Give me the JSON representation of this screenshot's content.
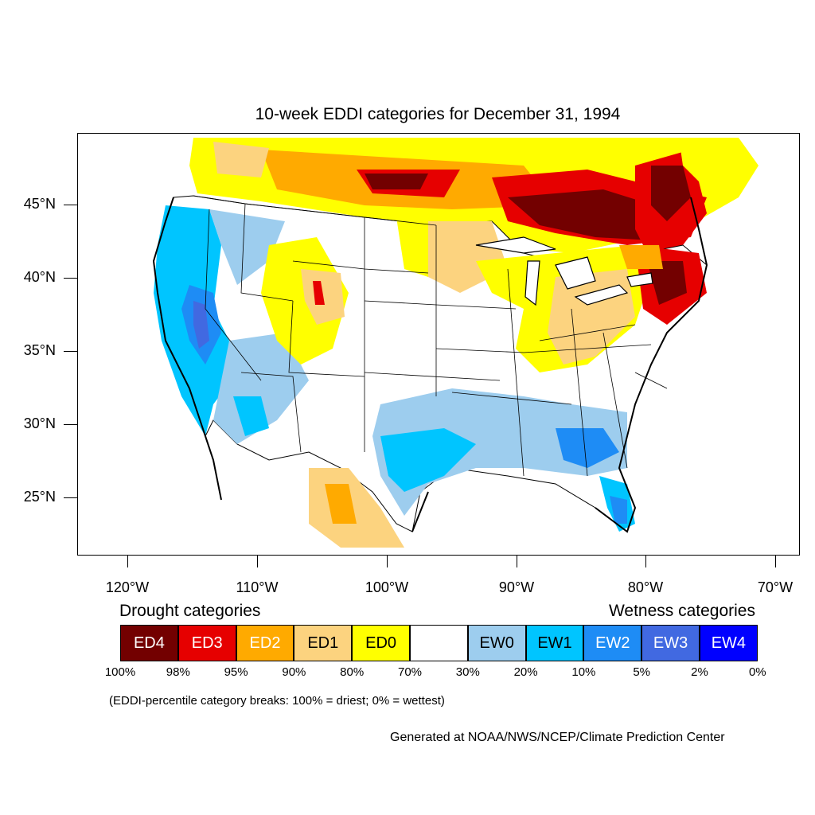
{
  "title": "10-week EDDI categories for December 31, 1994",
  "lat_labels": [
    "45°N",
    "40°N",
    "35°N",
    "30°N",
    "25°N"
  ],
  "lon_labels": [
    "120°W",
    "110°W",
    "100°W",
    "90°W",
    "80°W",
    "70°W"
  ],
  "legend": {
    "drought_label": "Drought categories",
    "wetness_label": "Wetness categories",
    "categories": [
      {
        "label": "ED4",
        "color": "#730000",
        "text_color": "#ffffff"
      },
      {
        "label": "ED3",
        "color": "#e60000",
        "text_color": "#ffffff"
      },
      {
        "label": "ED2",
        "color": "#ffaa00",
        "text_color": "#ffffff"
      },
      {
        "label": "ED1",
        "color": "#fcd37f",
        "text_color": "#000000"
      },
      {
        "label": "ED0",
        "color": "#ffff00",
        "text_color": "#000000"
      },
      {
        "label": "",
        "color": "#ffffff",
        "text_color": "#000000"
      },
      {
        "label": "EW0",
        "color": "#9dcdee",
        "text_color": "#000000"
      },
      {
        "label": "EW1",
        "color": "#00c5ff",
        "text_color": "#000000"
      },
      {
        "label": "EW2",
        "color": "#1e8cf5",
        "text_color": "#ffffff"
      },
      {
        "label": "EW3",
        "color": "#4169e1",
        "text_color": "#ffffff"
      },
      {
        "label": "EW4",
        "color": "#0000ff",
        "text_color": "#ffffff"
      }
    ],
    "breaks": [
      "100%",
      "98%",
      "95%",
      "90%",
      "80%",
      "70%",
      "30%",
      "20%",
      "10%",
      "5%",
      "2%",
      "0%"
    ]
  },
  "note": "(EDDI-percentile category breaks: 100% = driest; 0% = wettest)",
  "credit": "Generated at NOAA/NWS/NCEP/Climate Prediction Center"
}
